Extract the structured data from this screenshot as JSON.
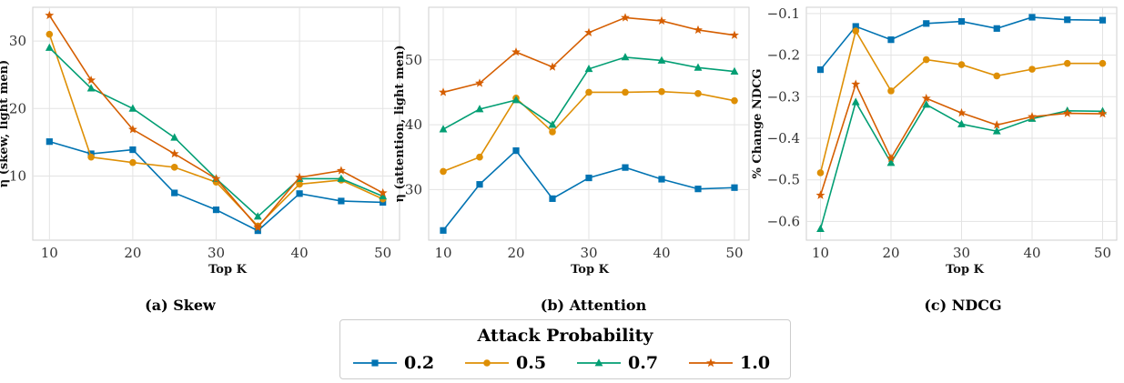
{
  "legend": {
    "title": "Attack Probability",
    "entries": [
      {
        "label": "0.2",
        "color": "#0173b2",
        "marker": "square"
      },
      {
        "label": "0.5",
        "color": "#de8f05",
        "marker": "circle"
      },
      {
        "label": "0.7",
        "color": "#029e73",
        "marker": "triangle"
      },
      {
        "label": "1.0",
        "color": "#d55e00",
        "marker": "star"
      }
    ]
  },
  "chart_data": [
    {
      "type": "line",
      "caption": "(a) Skew",
      "xlabel": "Top K",
      "ylabel": "η (skew, light men)",
      "x": [
        10,
        15,
        20,
        25,
        30,
        35,
        40,
        45,
        50
      ],
      "xticks": [
        10,
        20,
        30,
        40,
        50
      ],
      "yticks": [
        10,
        20,
        30
      ],
      "xlim": [
        8,
        52
      ],
      "ylim": [
        0.5,
        35
      ],
      "grid": true,
      "series": [
        {
          "name": "0.2",
          "values": [
            15.1,
            13.3,
            13.9,
            7.5,
            5.0,
            1.9,
            7.4,
            6.3,
            6.1
          ]
        },
        {
          "name": "0.5",
          "values": [
            31.0,
            12.8,
            12.0,
            11.3,
            9.1,
            2.6,
            8.8,
            9.4,
            6.6
          ]
        },
        {
          "name": "0.7",
          "values": [
            29.0,
            23.0,
            20.0,
            15.7,
            9.6,
            4.0,
            9.6,
            9.6,
            7.0
          ]
        },
        {
          "name": "1.0",
          "values": [
            33.8,
            24.2,
            16.9,
            13.3,
            9.6,
            2.4,
            9.8,
            10.8,
            7.5
          ]
        }
      ]
    },
    {
      "type": "line",
      "caption": "(b) Attention",
      "xlabel": "Top K",
      "ylabel": "η (attention, light men)",
      "x": [
        10,
        15,
        20,
        25,
        30,
        35,
        40,
        45,
        50
      ],
      "xticks": [
        10,
        20,
        30,
        40,
        50
      ],
      "yticks": [
        30,
        40,
        50
      ],
      "xlim": [
        8,
        52
      ],
      "ylim": [
        22.2,
        58.1
      ],
      "grid": true,
      "series": [
        {
          "name": "0.2",
          "values": [
            23.7,
            30.8,
            36.0,
            28.6,
            31.8,
            33.4,
            31.6,
            30.1,
            30.3
          ]
        },
        {
          "name": "0.5",
          "values": [
            32.8,
            35.0,
            44.1,
            38.9,
            45.0,
            45.0,
            45.1,
            44.8,
            43.7
          ]
        },
        {
          "name": "0.7",
          "values": [
            39.3,
            42.4,
            43.8,
            40.0,
            48.6,
            50.4,
            49.9,
            48.8,
            48.2
          ]
        },
        {
          "name": "1.0",
          "values": [
            45.0,
            46.4,
            51.2,
            48.9,
            54.2,
            56.5,
            56.0,
            54.6,
            53.8
          ]
        }
      ]
    },
    {
      "type": "line",
      "caption": "(c) NDCG",
      "xlabel": "Top K",
      "ylabel": "% Change NDCG",
      "x": [
        10,
        15,
        20,
        25,
        30,
        35,
        40,
        45,
        50
      ],
      "xticks": [
        10,
        20,
        30,
        40,
        50
      ],
      "yticks": [
        -0.1,
        -0.2,
        -0.3,
        -0.4,
        -0.5,
        -0.6
      ],
      "yticklabels": [
        "−0.1",
        "−0.2",
        "−0.3",
        "−0.4",
        "−0.5",
        "−0.6"
      ],
      "xlim": [
        8,
        52
      ],
      "ylim": [
        -0.645,
        -0.085
      ],
      "grid": true,
      "series": [
        {
          "name": "0.2",
          "values": [
            -0.235,
            -0.131,
            -0.163,
            -0.124,
            -0.119,
            -0.136,
            -0.109,
            -0.115,
            -0.116
          ]
        },
        {
          "name": "0.5",
          "values": [
            -0.483,
            -0.142,
            -0.286,
            -0.211,
            -0.223,
            -0.25,
            -0.234,
            -0.22,
            -0.22
          ]
        },
        {
          "name": "0.7",
          "values": [
            -0.618,
            -0.313,
            -0.459,
            -0.319,
            -0.366,
            -0.383,
            -0.353,
            -0.334,
            -0.335
          ]
        },
        {
          "name": "1.0",
          "values": [
            -0.537,
            -0.27,
            -0.448,
            -0.304,
            -0.339,
            -0.368,
            -0.348,
            -0.34,
            -0.341
          ]
        }
      ]
    }
  ]
}
